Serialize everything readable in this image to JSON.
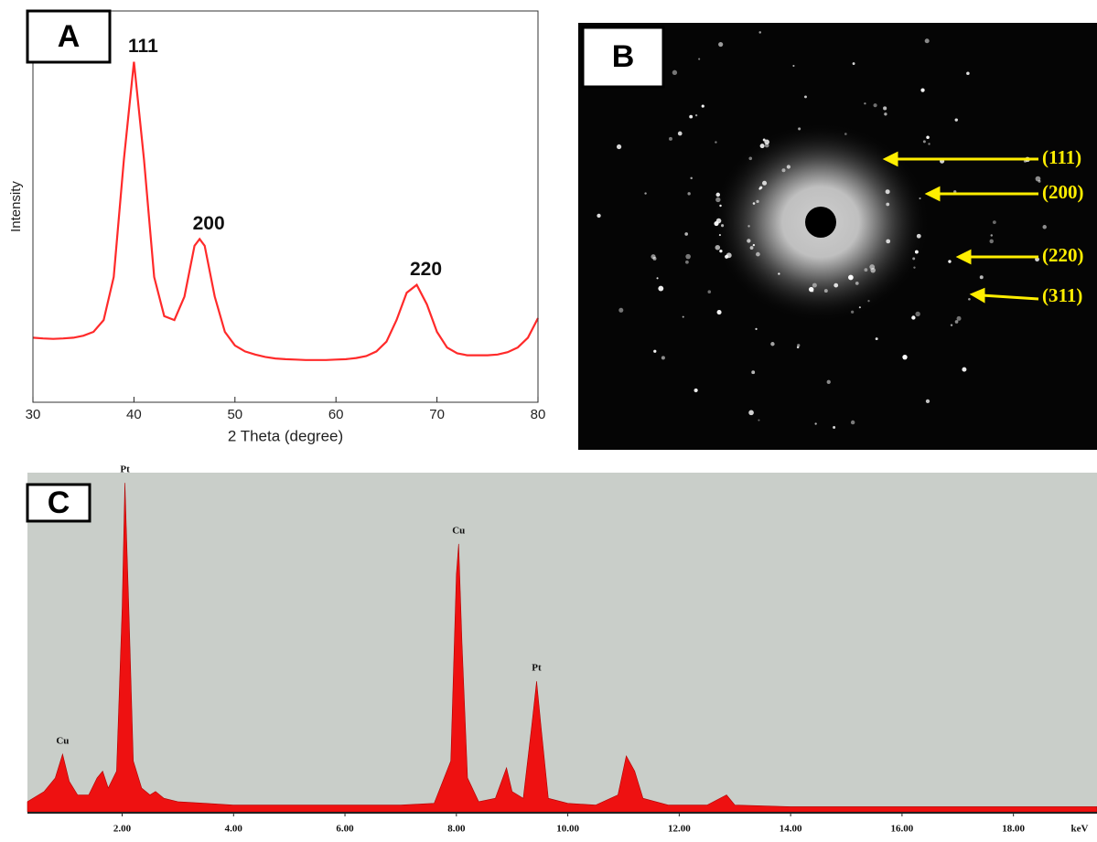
{
  "chart_data": [
    {
      "type": "line",
      "panel_label": "A",
      "xlabel": "2 Theta (degree)",
      "ylabel": "Intensity",
      "color": "#ff2a2a",
      "xlim": [
        30,
        80
      ],
      "xticks": [
        30,
        40,
        50,
        60,
        70,
        80
      ],
      "ylim": [
        0,
        100
      ],
      "x": [
        30,
        31,
        32,
        33,
        34,
        35,
        36,
        37,
        38,
        39,
        40,
        41,
        42,
        43,
        44,
        45,
        46,
        46.5,
        47,
        48,
        49,
        50,
        51,
        52,
        53,
        54,
        55,
        56,
        57,
        58,
        59,
        60,
        61,
        62,
        63,
        64,
        65,
        66,
        67,
        68,
        69,
        70,
        71,
        72,
        73,
        74,
        75,
        76,
        77,
        78,
        79,
        80
      ],
      "values": [
        16.5,
        16.3,
        16.2,
        16.3,
        16.5,
        17,
        18,
        21,
        32,
        62,
        87,
        62,
        32,
        22,
        21,
        27,
        40,
        41.7,
        40,
        27,
        18,
        14.5,
        13,
        12.2,
        11.6,
        11.2,
        11,
        10.9,
        10.8,
        10.8,
        10.8,
        10.9,
        11,
        11.3,
        11.8,
        13,
        15.5,
        21,
        28,
        30,
        25,
        18,
        14,
        12.5,
        12,
        12,
        12,
        12.2,
        12.8,
        14,
        16.5,
        21.5
      ],
      "annotations": [
        {
          "text": "111",
          "x": 40
        },
        {
          "text": "200",
          "x": 46.5
        },
        {
          "text": "220",
          "x": 68
        }
      ]
    },
    {
      "type": "area",
      "panel_label": "C",
      "xlabel": "keV",
      "color": "#ee1111",
      "background": "#c9cec9",
      "xlim": [
        0.3,
        19.5
      ],
      "ylim": [
        0,
        100
      ],
      "xticks": [
        {
          "value": 2,
          "label": "2.00"
        },
        {
          "value": 4,
          "label": "4.00"
        },
        {
          "value": 6,
          "label": "6.00"
        },
        {
          "value": 8,
          "label": "8.00"
        },
        {
          "value": 10,
          "label": "10.00"
        },
        {
          "value": 12,
          "label": "12.00"
        },
        {
          "value": 14,
          "label": "14.00"
        },
        {
          "value": 16,
          "label": "16.00"
        },
        {
          "value": 18,
          "label": "18.00"
        }
      ],
      "x": [
        0.3,
        0.6,
        0.8,
        0.93,
        1.05,
        1.2,
        1.4,
        1.55,
        1.65,
        1.75,
        1.9,
        2.0,
        2.05,
        2.12,
        2.2,
        2.35,
        2.5,
        2.6,
        2.75,
        3.0,
        3.5,
        4.0,
        5.0,
        6.0,
        7.0,
        7.6,
        7.9,
        8.0,
        8.04,
        8.1,
        8.2,
        8.4,
        8.7,
        8.9,
        9.0,
        9.2,
        9.35,
        9.44,
        9.52,
        9.65,
        10.0,
        10.5,
        10.9,
        11.05,
        11.2,
        11.35,
        11.8,
        12.5,
        12.85,
        13.0,
        14.0,
        16.0,
        18.0,
        19.5
      ],
      "values": [
        3,
        6,
        10,
        17,
        9,
        5,
        5,
        10,
        12,
        7,
        12,
        60,
        97,
        60,
        15,
        7,
        5,
        6,
        4,
        3,
        2.5,
        2,
        2,
        2,
        2,
        2.5,
        15,
        70,
        79,
        50,
        10,
        3,
        4,
        13,
        6,
        4,
        25,
        38.5,
        25,
        4,
        2.5,
        2,
        5,
        16.5,
        12,
        4,
        2,
        2,
        5,
        2,
        1.5,
        1.5,
        1.5,
        1.5
      ],
      "annotations": [
        {
          "text": "Cu",
          "x": 0.93
        },
        {
          "text": "Pt",
          "x": 2.05
        },
        {
          "text": "Cu",
          "x": 8.04
        },
        {
          "text": "Pt",
          "x": 9.44
        }
      ]
    }
  ],
  "diffraction": {
    "panel_label": "B",
    "rings": [
      "(111)",
      "(200)",
      "(220)",
      "(311)"
    ]
  }
}
